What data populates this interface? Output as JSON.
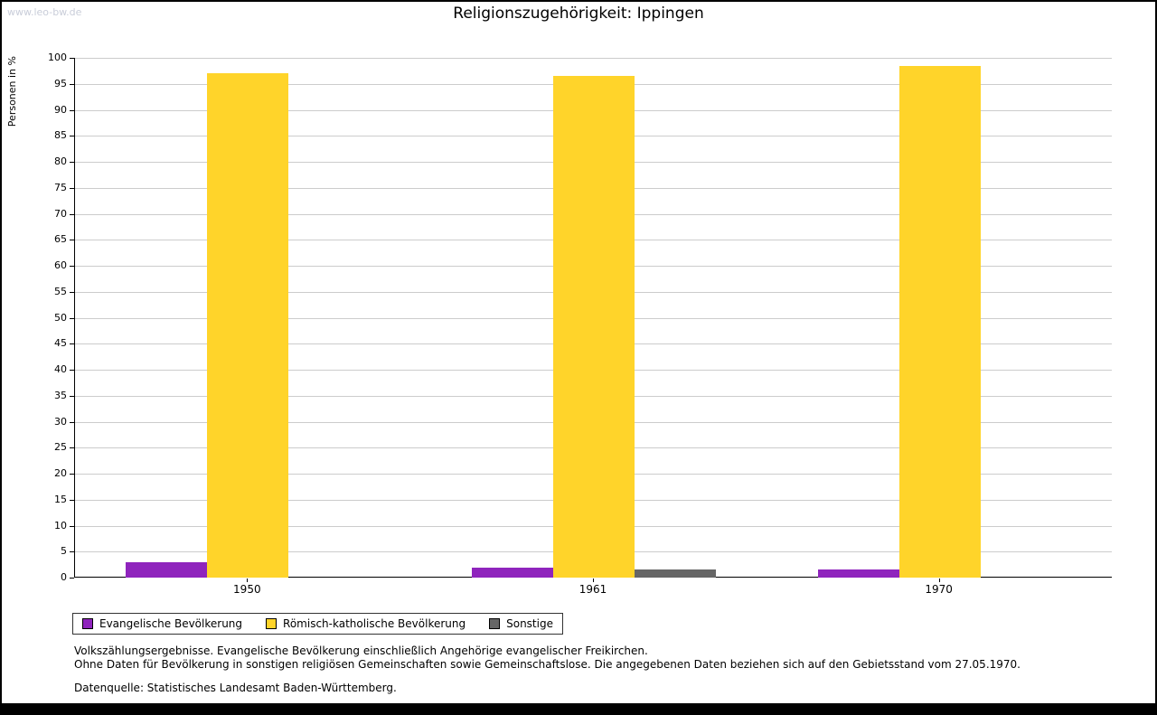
{
  "watermark": "www.leo-bw.de",
  "chart_data": {
    "type": "bar",
    "title": "Religionszugehörigkeit: Ippingen",
    "ylabel": "Personen in %",
    "xlabel": "",
    "ylim": [
      0,
      100
    ],
    "ytick_step": 5,
    "grid": true,
    "legend_position": "bottom-left",
    "categories": [
      "1950",
      "1961",
      "1970"
    ],
    "series": [
      {
        "name": "Evangelische Bevölkerung",
        "color": "#8f24bd",
        "values": [
          3,
          2,
          1.5
        ]
      },
      {
        "name": "Römisch-katholische Bevölkerung",
        "color": "#ffd42a",
        "values": [
          97,
          96.5,
          98.5
        ]
      },
      {
        "name": "Sonstige",
        "color": "#666666",
        "values": [
          0,
          1.5,
          0
        ]
      }
    ]
  },
  "footnotes": {
    "line1": "Volkszählungsergebnisse. Evangelische Bevölkerung einschließlich Angehörige evangelischer Freikirchen.",
    "line2": "Ohne Daten für Bevölkerung in sonstigen religiösen Gemeinschaften sowie Gemeinschaftslose. Die angegebenen Daten beziehen sich auf den Gebietsstand vom 27.05.1970.",
    "line3": "Datenquelle: Statistisches Landesamt Baden-Württemberg."
  }
}
